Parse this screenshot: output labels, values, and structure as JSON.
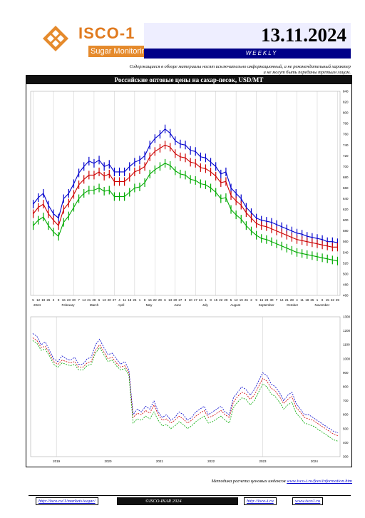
{
  "header": {
    "logo_name": "ISCO-1",
    "logo_subtitle": "Sugar Monitoring",
    "date": "13.11.2024",
    "frequency": "WEEKLY"
  },
  "disclaimer": "Содержащиеся в обзоре материалы носят исключительно информационный, а не рекомендательный характер и не могут быть переданы третьим лицам.",
  "chart_title": "Российские оптовые цены на сахар-песок, USD/MT",
  "colors": {
    "blue": "#0000cc",
    "red": "#cc0000",
    "green": "#00aa00",
    "navy": "#000088",
    "orange": "#e07a1f"
  },
  "chart_data": [
    {
      "type": "line",
      "title": "",
      "x_tick_labels": [
        "5",
        "12",
        "19",
        "26",
        "2",
        "9",
        "16",
        "23",
        "30",
        "7",
        "14",
        "21",
        "28",
        "6",
        "13",
        "20",
        "27",
        "4",
        "11",
        "18",
        "25",
        "1",
        "8",
        "15",
        "22",
        "29",
        "6",
        "13",
        "20",
        "27",
        "3",
        "10",
        "17",
        "24",
        "1",
        "8",
        "15",
        "22",
        "29",
        "5",
        "12",
        "19",
        "26",
        "2",
        "9",
        "16",
        "23",
        "30",
        "7",
        "14",
        "21",
        "28",
        "4",
        "11",
        "18",
        "25",
        "1",
        "8",
        "15",
        "22",
        "29"
      ],
      "x_month_labels": [
        "2024",
        "February",
        "March",
        "April",
        "May",
        "June",
        "July",
        "August",
        "September",
        "October",
        "November"
      ],
      "y_tick_labels": [
        "460",
        "480",
        "500",
        "520",
        "540",
        "560",
        "580",
        "600",
        "620",
        "640",
        "660",
        "680",
        "700",
        "720",
        "740",
        "760",
        "780",
        "800",
        "820",
        "840"
      ],
      "ylim": [
        460,
        840
      ],
      "series": [
        {
          "values": [
            630,
            642,
            650,
            628,
            612,
            604,
            640,
            650,
            668,
            688,
            700,
            710,
            706,
            712,
            700,
            704,
            690,
            690,
            690,
            700,
            708,
            712,
            720,
            740,
            752,
            760,
            770,
            762,
            748,
            742,
            740,
            730,
            728,
            718,
            716,
            708,
            700,
            686,
            690,
            660,
            650,
            640,
            624,
            614,
            604,
            600,
            598,
            596,
            592,
            588,
            584,
            580,
            576,
            574,
            570,
            568,
            566,
            564,
            560,
            560,
            558
          ]
        },
        {
          "values": [
            612,
            624,
            630,
            612,
            600,
            590,
            620,
            632,
            648,
            666,
            676,
            684,
            684,
            690,
            682,
            686,
            672,
            672,
            672,
            680,
            690,
            694,
            700,
            718,
            728,
            734,
            740,
            736,
            724,
            718,
            716,
            708,
            706,
            698,
            696,
            690,
            682,
            670,
            672,
            646,
            636,
            628,
            614,
            604,
            594,
            590,
            588,
            584,
            580,
            576,
            572,
            568,
            564,
            562,
            560,
            558,
            556,
            554,
            552,
            550,
            550
          ]
        },
        {
          "values": [
            590,
            600,
            606,
            590,
            578,
            570,
            596,
            608,
            624,
            640,
            650,
            656,
            656,
            660,
            654,
            656,
            644,
            644,
            644,
            652,
            660,
            662,
            670,
            686,
            694,
            700,
            706,
            702,
            692,
            686,
            684,
            676,
            674,
            668,
            666,
            660,
            652,
            640,
            642,
            620,
            610,
            602,
            590,
            580,
            572,
            566,
            564,
            560,
            556,
            552,
            548,
            544,
            540,
            538,
            536,
            534,
            532,
            530,
            528,
            526,
            524
          ]
        }
      ]
    },
    {
      "type": "line",
      "title": "",
      "x_tick_labels": [
        "2019",
        "2020",
        "2021",
        "2022",
        "2023",
        "2024"
      ],
      "y_tick_labels": [
        "300",
        "400",
        "500",
        "600",
        "700",
        "800",
        "900",
        "1000",
        "1100",
        "1200",
        "1300"
      ],
      "ylim": [
        300,
        1300
      ],
      "series": [
        {
          "values": [
            1180,
            1160,
            1100,
            1120,
            1060,
            1000,
            980,
            1020,
            1000,
            990,
            1010,
            960,
            960,
            1000,
            1010,
            1100,
            1140,
            1080,
            1030,
            1040,
            1000,
            960,
            980,
            920,
            600,
            640,
            620,
            660,
            640,
            700,
            620,
            580,
            600,
            560,
            580,
            620,
            600,
            560,
            580,
            620,
            640,
            660,
            600,
            620,
            640,
            660,
            620,
            600,
            720,
            760,
            800,
            780,
            740,
            780,
            840,
            900,
            880,
            820,
            800,
            760,
            700,
            740,
            760,
            680,
            640,
            600,
            600,
            580,
            560,
            540,
            520,
            500,
            480,
            470
          ]
        },
        {
          "values": [
            1150,
            1130,
            1080,
            1090,
            1040,
            980,
            960,
            990,
            980,
            970,
            980,
            940,
            940,
            970,
            980,
            1060,
            1100,
            1050,
            1000,
            1010,
            970,
            940,
            950,
            900,
            580,
            610,
            600,
            630,
            610,
            670,
            600,
            560,
            570,
            540,
            560,
            590,
            570,
            540,
            560,
            590,
            610,
            630,
            580,
            590,
            610,
            630,
            600,
            580,
            690,
            730,
            760,
            750,
            710,
            740,
            800,
            860,
            840,
            790,
            770,
            730,
            680,
            710,
            730,
            650,
            620,
            580,
            570,
            560,
            540,
            520,
            500,
            480,
            460,
            450
          ]
        },
        {
          "values": [
            1130,
            1110,
            1060,
            1070,
            1020,
            960,
            940,
            970,
            960,
            950,
            960,
            920,
            920,
            950,
            960,
            1040,
            1080,
            1030,
            980,
            990,
            950,
            920,
            930,
            880,
            540,
            570,
            560,
            590,
            570,
            620,
            560,
            520,
            530,
            500,
            520,
            550,
            530,
            500,
            520,
            550,
            570,
            590,
            540,
            550,
            570,
            590,
            560,
            540,
            650,
            690,
            720,
            710,
            670,
            700,
            760,
            820,
            800,
            750,
            730,
            690,
            640,
            670,
            690,
            610,
            580,
            540,
            530,
            520,
            500,
            480,
            460,
            440,
            420,
            410
          ]
        }
      ]
    }
  ],
  "methodology": {
    "text": "Методика расчета ценовых индексов",
    "link": "www.isco-i.ru/fees/information.htm"
  },
  "footer": {
    "url1": "http://isco.ru/1/markets/sugar/",
    "brand": "©ISCO-IKAR 2024",
    "url2": "http://isco-i.ru",
    "url3": "www.isco1.ru"
  }
}
